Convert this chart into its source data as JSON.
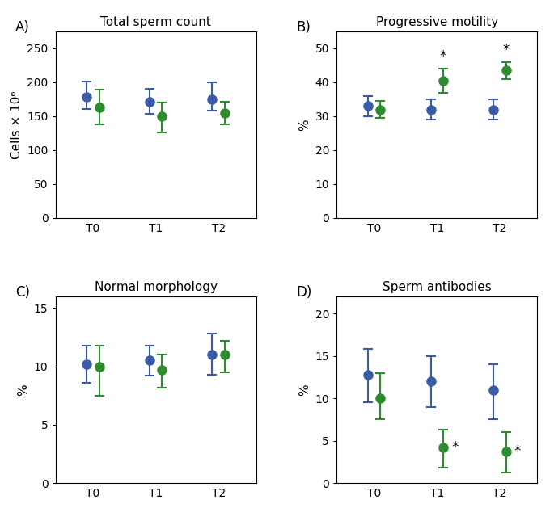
{
  "panels": {
    "A": {
      "title": "Total sperm count",
      "label": "A)",
      "ylabel": "Cells × 10⁶",
      "ylim": [
        0,
        275
      ],
      "yticks": [
        0,
        50,
        100,
        150,
        200,
        250
      ],
      "xticks": [
        "T0",
        "T1",
        "T2"
      ],
      "blue": {
        "means": [
          179,
          171,
          175
        ],
        "err_high": [
          201,
          191,
          200
        ],
        "err_lo_abs": [
          161,
          153,
          158
        ]
      },
      "green": {
        "means": [
          163,
          150,
          155
        ],
        "err_high": [
          189,
          170,
          171
        ],
        "err_lo_abs": [
          138,
          126,
          138
        ]
      },
      "asterisk": [
        false,
        false,
        false
      ]
    },
    "B": {
      "title": "Progressive motility",
      "label": "B)",
      "ylabel": "%",
      "ylim": [
        0,
        55
      ],
      "yticks": [
        0,
        10,
        20,
        30,
        40,
        50
      ],
      "xticks": [
        "T0",
        "T1",
        "T2"
      ],
      "blue": {
        "means": [
          33,
          32,
          32
        ],
        "err_high": [
          36,
          35,
          35
        ],
        "err_lo_abs": [
          30,
          29,
          29
        ]
      },
      "green": {
        "means": [
          32,
          40.5,
          43.5
        ],
        "err_high": [
          34.5,
          44,
          46
        ],
        "err_lo_abs": [
          29.5,
          37,
          41
        ]
      },
      "asterisk": [
        false,
        true,
        true
      ],
      "asterisk_on_green": true
    },
    "C": {
      "title": "Normal morphology",
      "label": "C)",
      "ylabel": "%",
      "ylim": [
        0,
        16
      ],
      "yticks": [
        0,
        5,
        10,
        15
      ],
      "xticks": [
        "T0",
        "T1",
        "T2"
      ],
      "blue": {
        "means": [
          10.2,
          10.5,
          11.0
        ],
        "err_high": [
          11.8,
          11.8,
          12.8
        ],
        "err_lo_abs": [
          8.6,
          9.2,
          9.3
        ]
      },
      "green": {
        "means": [
          10.0,
          9.7,
          11.0
        ],
        "err_high": [
          11.8,
          11.0,
          12.2
        ],
        "err_lo_abs": [
          7.5,
          8.2,
          9.5
        ]
      },
      "asterisk": [
        false,
        false,
        false
      ]
    },
    "D": {
      "title": "Sperm antibodies",
      "label": "D)",
      "ylabel": "%",
      "ylim": [
        0,
        22
      ],
      "yticks": [
        0,
        5,
        10,
        15,
        20
      ],
      "xticks": [
        "T0",
        "T1",
        "T2"
      ],
      "blue": {
        "means": [
          12.8,
          12.0,
          11.0
        ],
        "err_high": [
          15.8,
          15.0,
          14.0
        ],
        "err_lo_abs": [
          9.5,
          9.0,
          7.5
        ]
      },
      "green": {
        "means": [
          10.0,
          4.2,
          3.7
        ],
        "err_high": [
          13.0,
          6.3,
          6.0
        ],
        "err_lo_abs": [
          7.5,
          1.8,
          1.2
        ]
      },
      "asterisk": [
        false,
        true,
        true
      ],
      "asterisk_on_green": true,
      "asterisk_right": true
    }
  },
  "blue_color": "#3a5ca8",
  "green_color": "#2e8b2e",
  "capsize": 4,
  "linewidth": 1.5,
  "markersize": 8
}
